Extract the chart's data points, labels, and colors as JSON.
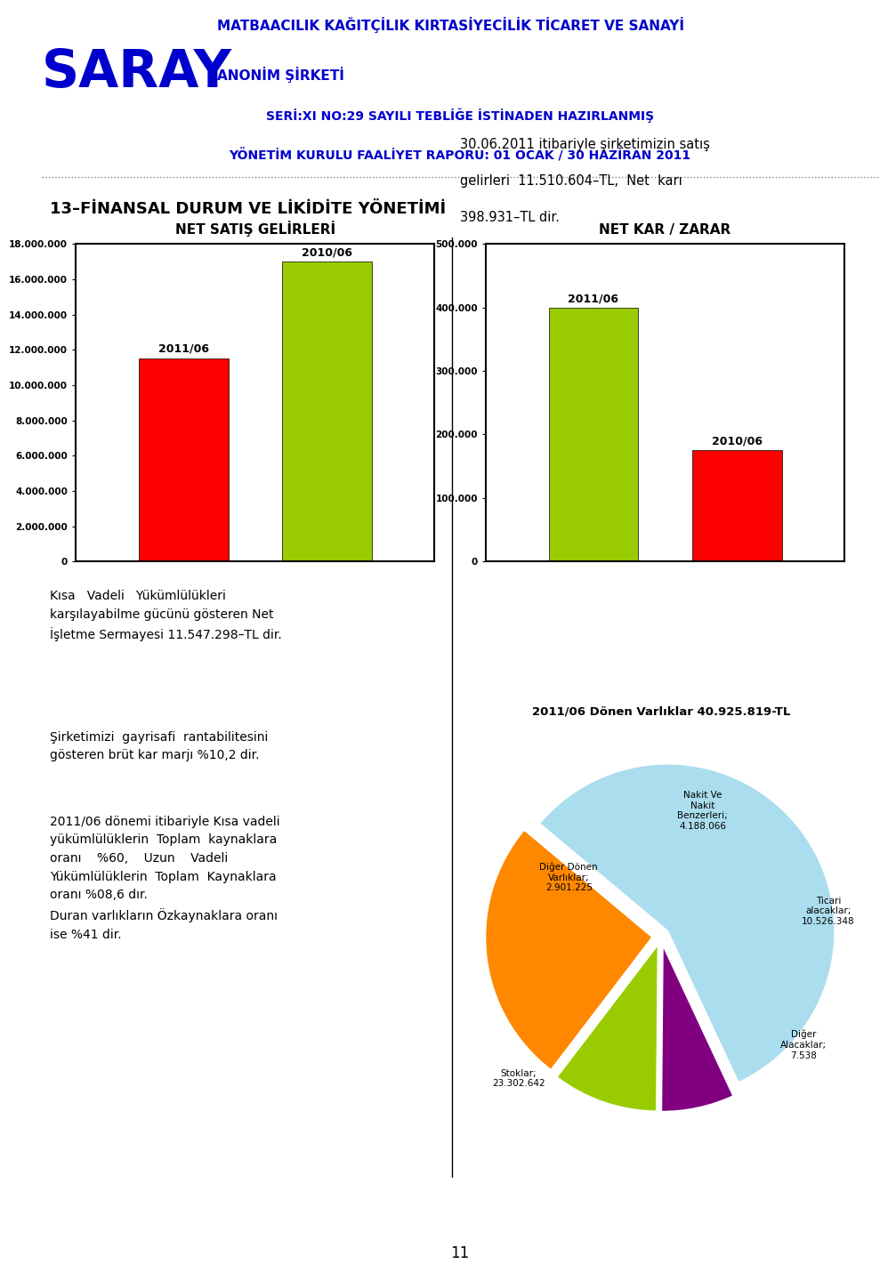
{
  "title_company": "SARAY",
  "title_company_color": "#0000CC",
  "title_right1": "MATBAACILIK KAĞITÇİLIK KIRTASİYECİLİK TİCARET VE SANAYİ",
  "title_right2": "ANONİM ŞİRKETİ",
  "title_right_color": "#0000CC",
  "subtitle1": "SERİ:XI NO:29 SAYILI TEBLİĞE İSTİNADEN HAZIRLANMIŞ",
  "subtitle2": "YÖNETİM KURULU FAALİYET RAPORU: 01 OCAK / 30 HAZİRAN 2011",
  "subtitle_color": "#0000CC",
  "section_title": "13–FİNANSAL DURUM VE LİKİDİTE YÖNETİMİ",
  "bar1_title": "NET SATIŞ GELİRLERİ",
  "bar1_categories": [
    "2011/06",
    "2010/06"
  ],
  "bar1_values": [
    11510604,
    17000000
  ],
  "bar1_colors": [
    "#ff0000",
    "#99cc00"
  ],
  "bar1_ylim": [
    0,
    18000000
  ],
  "bar1_yticks": [
    0,
    2000000,
    4000000,
    6000000,
    8000000,
    10000000,
    12000000,
    14000000,
    16000000,
    18000000
  ],
  "bar2_title": "NET KAR / ZARAR",
  "bar2_categories": [
    "2011/06",
    "2010/06"
  ],
  "bar2_values": [
    398931,
    175000
  ],
  "bar2_colors": [
    "#99cc00",
    "#ff0000"
  ],
  "bar2_ylim": [
    0,
    500000
  ],
  "bar2_yticks": [
    0,
    100000,
    200000,
    300000,
    400000,
    500000
  ],
  "left_text1": "Kısa   Vadeli   Yükümlülükleri\nkarşılayabilme gücünü gösteren Net\nİşletme Sermayesi 11.547.298–TL dir.",
  "left_text2": "Şirketimizi  gayrisafi  rantabilitesini\ngösteren brüt kar marjı %10,2 dir.",
  "left_text3": "2011/06 dönemi itibariyle Kısa vadeli\nyükümlülüklerin  Toplam  kaynaklara\noranı    %60,    Uzun    Vadeli\nYükümlülüklerin  Toplam  Kaynaklara\noranı %08,6 dır.\nDuran varlıkların Özkaynaklara oranı\nise %41 dir.",
  "right_text1": "30.06.2011 itibariyle şirketimizin satış\ngelirleri  11.510.604–TL,  Net  karı\n398.931–TL dir.",
  "pie_title": "2011/06 Dönen Varlıklar 40.925.819-TL",
  "pie_values": [
    23302642,
    2901225,
    4188066,
    10526348,
    7538
  ],
  "pie_labels": [
    "Stoklar;\n23.302.642",
    "Diğer Dönen\nVarlıklar;\n2.901.225",
    "Nakit Ve\nNakit\nBenzerleri;\n4.188.066",
    "Ticari\nalacaklar;\n10.526.348",
    "Diğer\nAlacaklar;\n7.538"
  ],
  "pie_colors": [
    "#aaddee",
    "#800080",
    "#99cc00",
    "#ff8800",
    "#336600"
  ],
  "pie_explode": [
    0.05,
    0.05,
    0.05,
    0.05,
    0.05
  ],
  "page_number": "11",
  "bg_color": "#ffffff"
}
